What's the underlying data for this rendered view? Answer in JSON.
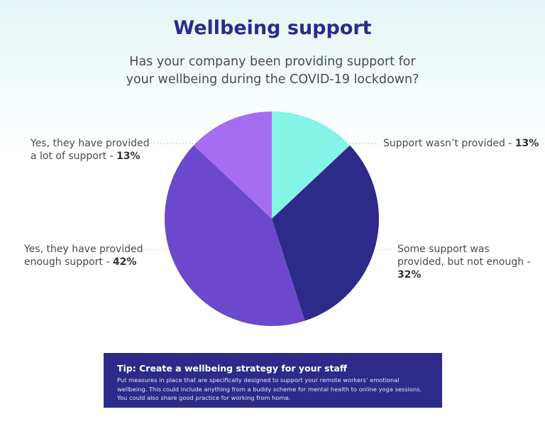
{
  "chart_data": {
    "type": "pie",
    "title": "Wellbeing support",
    "subtitle": "Has your company been providing support for your wellbeing during the COVID-19 lockdown?",
    "categories": [
      "Support wasn’t provided -",
      "Some support was provided, but not enough -",
      "Yes, they have provided enough support -",
      "Yes, they have provided a lot of support -"
    ],
    "values": [
      13,
      32,
      42,
      13
    ],
    "value_labels": [
      "13%",
      "32%",
      "42%",
      "13%"
    ],
    "colors": [
      "#84f4e6",
      "#2e2a8a",
      "#6c48cc",
      "#a66cf2"
    ]
  },
  "tip": {
    "title": "Tip: Create a wellbeing strategy for your staff",
    "text": "Put measures in place that are specifically designed to support your remote workers’ emotional wellbeing. This could include anything from a buddy scheme for mental health to online yoga sessions. You could also share good practice for working from home."
  }
}
